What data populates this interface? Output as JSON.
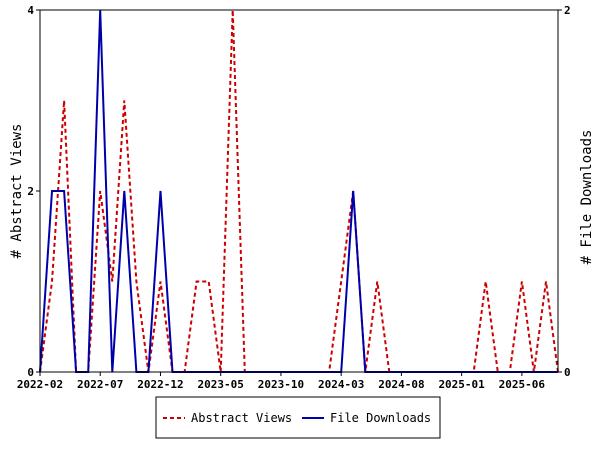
{
  "chart_data": {
    "type": "line",
    "x_tick_labels": [
      "2022-02",
      "2022-07",
      "2022-12",
      "2023-05",
      "2023-10",
      "2024-03",
      "2024-08",
      "2025-01",
      "2025-06"
    ],
    "xlabel": "",
    "y_left_label": "# Abstract Views",
    "y_right_label": "# File Downloads",
    "y_left_lim": [
      0,
      4
    ],
    "y_right_lim": [
      0,
      2
    ],
    "y_left_ticks": [
      "0",
      "2",
      "4"
    ],
    "y_right_ticks": [
      "0",
      "2"
    ],
    "x_month_range": [
      "2022-02",
      "2025-09"
    ],
    "grid": false,
    "legend_position": "bottom",
    "series": [
      {
        "name": "Abstract Views",
        "axis": "left",
        "color": "#cc0000",
        "dash": true,
        "points": [
          [
            "2022-02",
            0
          ],
          [
            "2022-03",
            1
          ],
          [
            "2022-04",
            3
          ],
          [
            "2022-05",
            0
          ],
          [
            "2022-06",
            0
          ],
          [
            "2022-07",
            2
          ],
          [
            "2022-08",
            1
          ],
          [
            "2022-09",
            3
          ],
          [
            "2022-10",
            1
          ],
          [
            "2022-11",
            0
          ],
          [
            "2022-12",
            1
          ],
          [
            "2023-01",
            0
          ],
          [
            "2023-02",
            0
          ],
          [
            "2023-03",
            1
          ],
          [
            "2023-04",
            1
          ],
          [
            "2023-05",
            0
          ],
          [
            "2023-06",
            4
          ],
          [
            "2023-07",
            0
          ],
          [
            "2023-08",
            0
          ],
          [
            "2023-09",
            0
          ],
          [
            "2023-10",
            0
          ],
          [
            "2023-11",
            0
          ],
          [
            "2023-12",
            0
          ],
          [
            "2024-01",
            0
          ],
          [
            "2024-02",
            0
          ],
          [
            "2024-03",
            1
          ],
          [
            "2024-04",
            2
          ],
          [
            "2024-05",
            0
          ],
          [
            "2024-06",
            1
          ],
          [
            "2024-07",
            0
          ],
          [
            "2024-08",
            0
          ],
          [
            "2024-09",
            0
          ],
          [
            "2024-10",
            0
          ],
          [
            "2024-11",
            0
          ],
          [
            "2024-12",
            0
          ],
          [
            "2025-01",
            0
          ],
          [
            "2025-02",
            0
          ],
          [
            "2025-03",
            1
          ],
          [
            "2025-04",
            0
          ],
          [
            "2025-05",
            0
          ],
          [
            "2025-06",
            1
          ],
          [
            "2025-07",
            0
          ],
          [
            "2025-08",
            1
          ],
          [
            "2025-09",
            0
          ]
        ]
      },
      {
        "name": "File Downloads",
        "axis": "right",
        "color": "#0000aa",
        "dash": false,
        "points": [
          [
            "2022-02",
            0
          ],
          [
            "2022-03",
            1
          ],
          [
            "2022-04",
            1
          ],
          [
            "2022-05",
            0
          ],
          [
            "2022-06",
            0
          ],
          [
            "2022-07",
            2
          ],
          [
            "2022-08",
            0
          ],
          [
            "2022-09",
            1
          ],
          [
            "2022-10",
            0
          ],
          [
            "2022-11",
            0
          ],
          [
            "2022-12",
            1
          ],
          [
            "2023-01",
            0
          ],
          [
            "2023-02",
            0
          ],
          [
            "2023-03",
            0
          ],
          [
            "2023-04",
            0
          ],
          [
            "2023-05",
            0
          ],
          [
            "2023-06",
            0
          ],
          [
            "2023-07",
            0
          ],
          [
            "2023-08",
            0
          ],
          [
            "2023-09",
            0
          ],
          [
            "2023-10",
            0
          ],
          [
            "2023-11",
            0
          ],
          [
            "2023-12",
            0
          ],
          [
            "2024-01",
            0
          ],
          [
            "2024-02",
            0
          ],
          [
            "2024-03",
            0
          ],
          [
            "2024-04",
            1
          ],
          [
            "2024-05",
            0
          ],
          [
            "2024-06",
            0
          ],
          [
            "2024-07",
            0
          ],
          [
            "2024-08",
            0
          ],
          [
            "2024-09",
            0
          ],
          [
            "2024-10",
            0
          ],
          [
            "2024-11",
            0
          ],
          [
            "2024-12",
            0
          ],
          [
            "2025-01",
            0
          ],
          [
            "2025-02",
            0
          ],
          [
            "2025-03",
            0
          ],
          [
            "2025-04",
            0
          ],
          [
            "2025-05",
            0
          ],
          [
            "2025-06",
            0
          ],
          [
            "2025-07",
            0
          ],
          [
            "2025-08",
            0
          ],
          [
            "2025-09",
            0
          ]
        ]
      }
    ]
  }
}
